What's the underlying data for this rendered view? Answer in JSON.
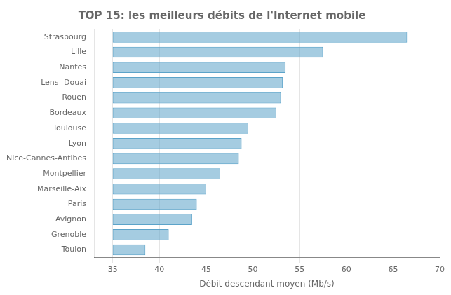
{
  "chart_data": {
    "type": "bar",
    "orientation": "horizontal",
    "title": "TOP 15: les meilleurs débits de l'Internet mobile",
    "xlabel": "Débit descendant moyen (Mb/s)",
    "categories": [
      "Toulon",
      "Grenoble",
      "Avignon",
      "Paris",
      "Marseille-Aix",
      "Montpellier",
      "Nice-Cannes-Antibes",
      "Lyon",
      "Toulouse",
      "Bordeaux",
      "Rouen",
      "Lens- Douai",
      "Nantes",
      "Lille",
      "Strasbourg"
    ],
    "values": [
      [
        35,
        38.5
      ],
      [
        35,
        41.0
      ],
      [
        35,
        43.5
      ],
      [
        35,
        44.0
      ],
      [
        35,
        45.0
      ],
      [
        35,
        46.5
      ],
      [
        35,
        48.5
      ],
      [
        35,
        48.8
      ],
      [
        35,
        49.5
      ],
      [
        35,
        52.5
      ],
      [
        35,
        53.0
      ],
      [
        35,
        53.2
      ],
      [
        35,
        53.5
      ],
      [
        35,
        57.5
      ],
      [
        35,
        66.5
      ]
    ],
    "color": "#5ba3c9",
    "xlim": [
      33,
      70
    ],
    "xticks": [
      35,
      40,
      45,
      50,
      55,
      60,
      65,
      70
    ],
    "grid": true
  }
}
